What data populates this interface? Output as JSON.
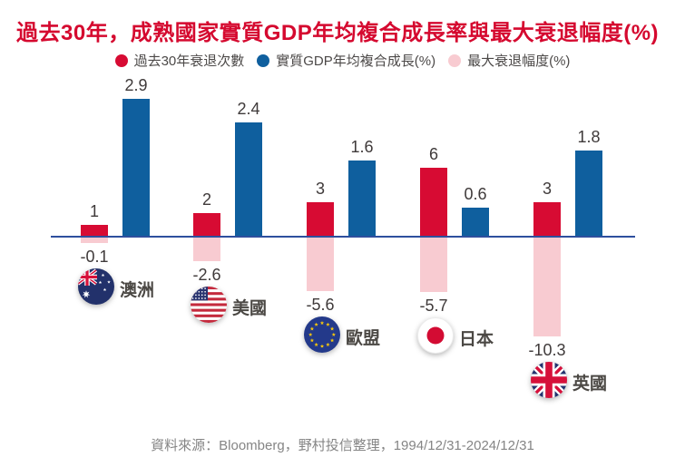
{
  "chart_data": {
    "type": "bar",
    "title": "過去30年，成熟國家實質GDP年均複合成長率與最大衰退幅度(%)",
    "categories": [
      "澳洲",
      "美國",
      "歐盟",
      "日本",
      "英國"
    ],
    "category_flags": [
      "australia",
      "usa",
      "eu",
      "japan",
      "uk"
    ],
    "series": [
      {
        "name": "過去30年衰退次數",
        "role": "recession_count",
        "values": [
          1,
          2,
          3,
          6,
          3
        ],
        "color": "#d70b33"
      },
      {
        "name": "實質GDP年均複合成長(%)",
        "role": "gdp_cagr",
        "values": [
          2.9,
          2.4,
          1.6,
          0.6,
          1.8
        ],
        "color": "#0f5f9e"
      },
      {
        "name": "最大衰退幅度(%)",
        "role": "max_drawdown",
        "values": [
          -0.1,
          -2.6,
          -5.6,
          -5.7,
          -10.3
        ],
        "color": "#f8cbd1"
      }
    ],
    "baseline": 0,
    "grid": false,
    "legend_position": "top"
  },
  "icons": {
    "flags": [
      "australia-flag-icon",
      "usa-flag-icon",
      "eu-flag-icon",
      "japan-flag-icon",
      "uk-flag-icon"
    ]
  },
  "colors": {
    "title": "#d5092f",
    "axis": "#2e4f9e",
    "value_label": "#3f3a3a",
    "country_label": "#4b4844",
    "legend_text": "#4c4948",
    "footer_text": "#858585",
    "background": "#ffffff"
  },
  "footer": {
    "source": "資料來源：Bloomberg，野村投信整理，1994/12/31-2024/12/31"
  }
}
